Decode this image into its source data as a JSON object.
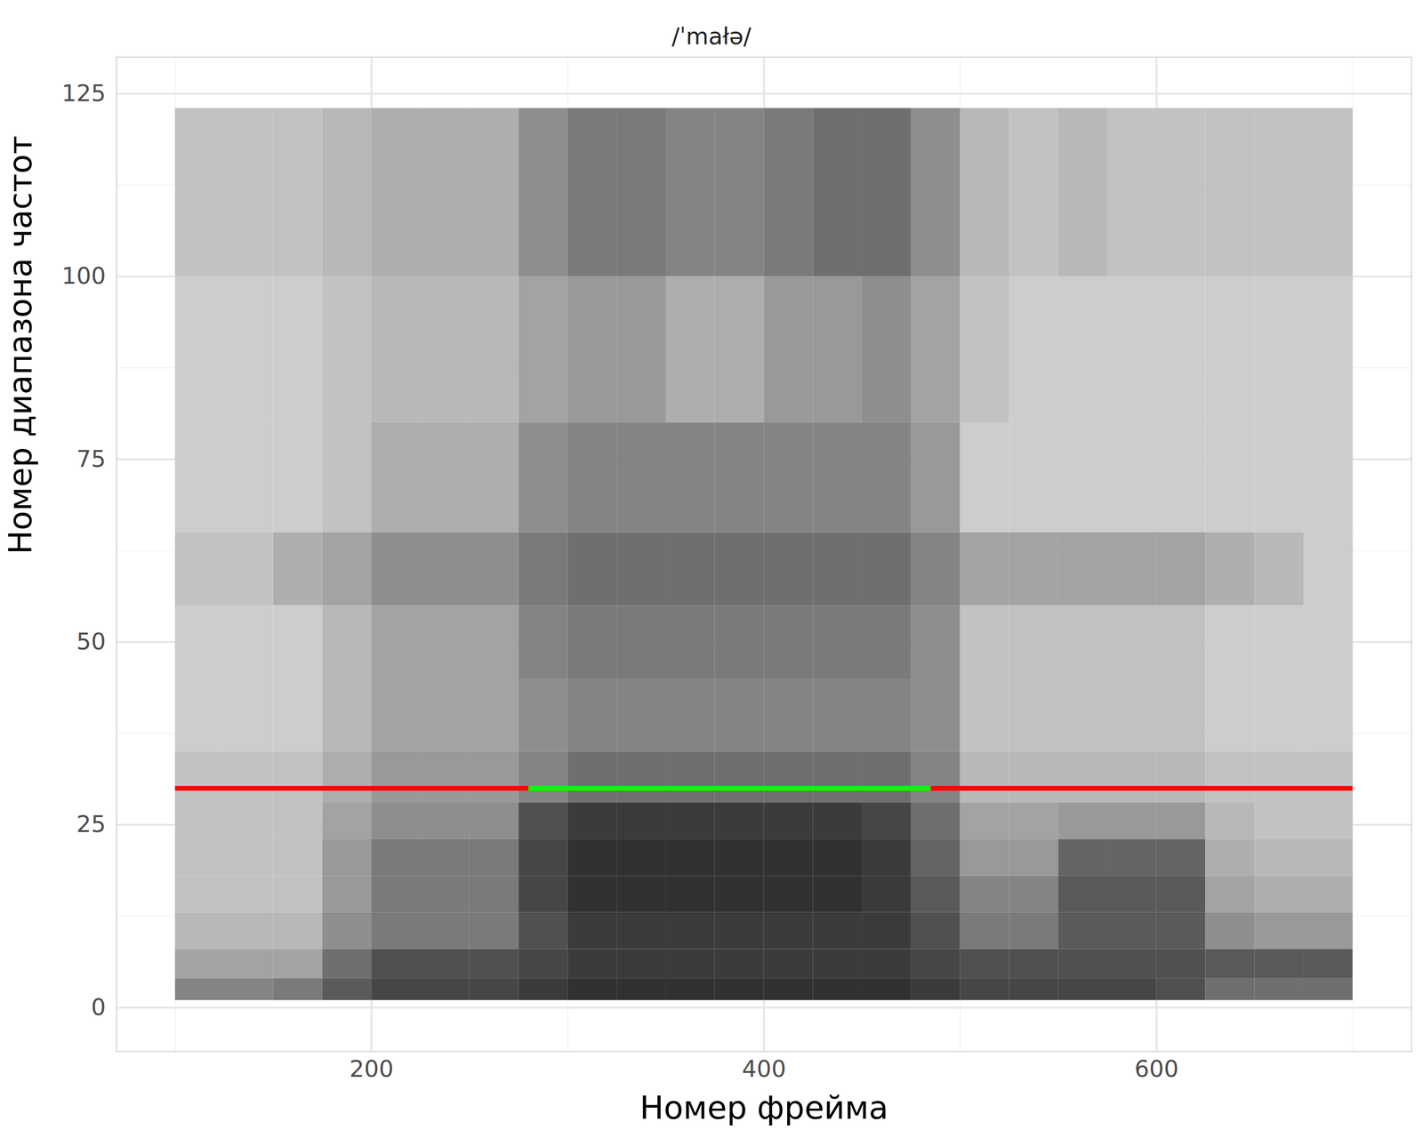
{
  "chart_data": {
    "type": "heatmap",
    "title": "/ˈmałə/",
    "xlabel": "Номер фрейма",
    "ylabel": "Номер диапазона частот",
    "xlim": [
      70,
      730
    ],
    "ylim": [
      -6,
      130
    ],
    "xticks": [
      200,
      400,
      600
    ],
    "yticks": [
      0,
      25,
      50,
      75,
      100,
      125
    ],
    "grid": true,
    "x_edges": [
      100,
      125,
      150,
      175,
      200,
      225,
      250,
      275,
      300,
      325,
      350,
      375,
      400,
      425,
      450,
      475,
      500,
      525,
      550,
      575,
      600,
      625,
      650,
      675,
      700
    ],
    "y_edges": [
      1,
      4,
      8,
      13,
      18,
      23,
      28,
      35,
      45,
      55,
      65,
      80,
      100,
      123
    ],
    "cells_range": [
      0,
      1
    ],
    "cells": [
      [
        0.5,
        0.5,
        0.55,
        0.7,
        0.8,
        0.8,
        0.8,
        0.85,
        0.9,
        0.9,
        0.9,
        0.9,
        0.9,
        0.9,
        0.9,
        0.85,
        0.8,
        0.8,
        0.8,
        0.8,
        0.75,
        0.6,
        0.6,
        0.6
      ],
      [
        0.35,
        0.35,
        0.35,
        0.6,
        0.75,
        0.75,
        0.75,
        0.8,
        0.85,
        0.85,
        0.85,
        0.85,
        0.85,
        0.85,
        0.85,
        0.8,
        0.75,
        0.75,
        0.75,
        0.75,
        0.75,
        0.7,
        0.7,
        0.7
      ],
      [
        0.25,
        0.25,
        0.25,
        0.45,
        0.55,
        0.55,
        0.55,
        0.75,
        0.85,
        0.85,
        0.85,
        0.85,
        0.85,
        0.85,
        0.85,
        0.75,
        0.55,
        0.55,
        0.7,
        0.7,
        0.7,
        0.45,
        0.4,
        0.4
      ],
      [
        0.2,
        0.2,
        0.2,
        0.4,
        0.55,
        0.55,
        0.55,
        0.8,
        0.9,
        0.9,
        0.9,
        0.9,
        0.9,
        0.9,
        0.85,
        0.7,
        0.5,
        0.5,
        0.7,
        0.7,
        0.7,
        0.35,
        0.3,
        0.3
      ],
      [
        0.2,
        0.2,
        0.2,
        0.4,
        0.55,
        0.55,
        0.55,
        0.8,
        0.9,
        0.9,
        0.9,
        0.9,
        0.9,
        0.9,
        0.85,
        0.65,
        0.4,
        0.4,
        0.65,
        0.65,
        0.65,
        0.3,
        0.25,
        0.25
      ],
      [
        0.2,
        0.2,
        0.2,
        0.35,
        0.45,
        0.45,
        0.45,
        0.75,
        0.85,
        0.85,
        0.85,
        0.85,
        0.85,
        0.85,
        0.8,
        0.6,
        0.35,
        0.35,
        0.4,
        0.4,
        0.4,
        0.25,
        0.2,
        0.2
      ],
      [
        0.2,
        0.2,
        0.2,
        0.3,
        0.4,
        0.4,
        0.4,
        0.5,
        0.6,
        0.6,
        0.6,
        0.6,
        0.6,
        0.6,
        0.6,
        0.5,
        0.25,
        0.25,
        0.25,
        0.25,
        0.25,
        0.2,
        0.2,
        0.2
      ],
      [
        0.15,
        0.15,
        0.15,
        0.25,
        0.35,
        0.35,
        0.35,
        0.45,
        0.5,
        0.5,
        0.5,
        0.5,
        0.5,
        0.5,
        0.5,
        0.45,
        0.2,
        0.2,
        0.2,
        0.2,
        0.2,
        0.15,
        0.15,
        0.15
      ],
      [
        0.15,
        0.15,
        0.15,
        0.25,
        0.35,
        0.35,
        0.35,
        0.5,
        0.55,
        0.55,
        0.55,
        0.55,
        0.55,
        0.55,
        0.55,
        0.45,
        0.2,
        0.2,
        0.2,
        0.2,
        0.2,
        0.15,
        0.15,
        0.15
      ],
      [
        0.2,
        0.2,
        0.3,
        0.35,
        0.45,
        0.45,
        0.45,
        0.55,
        0.6,
        0.6,
        0.6,
        0.6,
        0.6,
        0.6,
        0.6,
        0.5,
        0.35,
        0.35,
        0.35,
        0.35,
        0.35,
        0.3,
        0.25,
        0.15
      ],
      [
        0.15,
        0.15,
        0.15,
        0.2,
        0.3,
        0.3,
        0.3,
        0.45,
        0.5,
        0.5,
        0.5,
        0.5,
        0.5,
        0.5,
        0.5,
        0.4,
        0.15,
        0.15,
        0.15,
        0.15,
        0.15,
        0.15,
        0.15,
        0.15
      ],
      [
        0.15,
        0.15,
        0.15,
        0.2,
        0.25,
        0.25,
        0.25,
        0.35,
        0.4,
        0.4,
        0.3,
        0.3,
        0.4,
        0.4,
        0.45,
        0.35,
        0.2,
        0.15,
        0.15,
        0.15,
        0.15,
        0.15,
        0.15,
        0.15
      ],
      [
        0.2,
        0.2,
        0.2,
        0.25,
        0.3,
        0.3,
        0.3,
        0.45,
        0.55,
        0.55,
        0.5,
        0.5,
        0.55,
        0.6,
        0.6,
        0.45,
        0.25,
        0.2,
        0.25,
        0.2,
        0.2,
        0.2,
        0.2,
        0.2
      ]
    ],
    "segments": [
      {
        "x1": 100,
        "x2": 280,
        "y": 30,
        "color": "#ff0000"
      },
      {
        "x1": 280,
        "x2": 485,
        "y": 30,
        "color": "#00ff00"
      },
      {
        "x1": 485,
        "x2": 700,
        "y": 30,
        "color": "#ff0000"
      }
    ]
  }
}
